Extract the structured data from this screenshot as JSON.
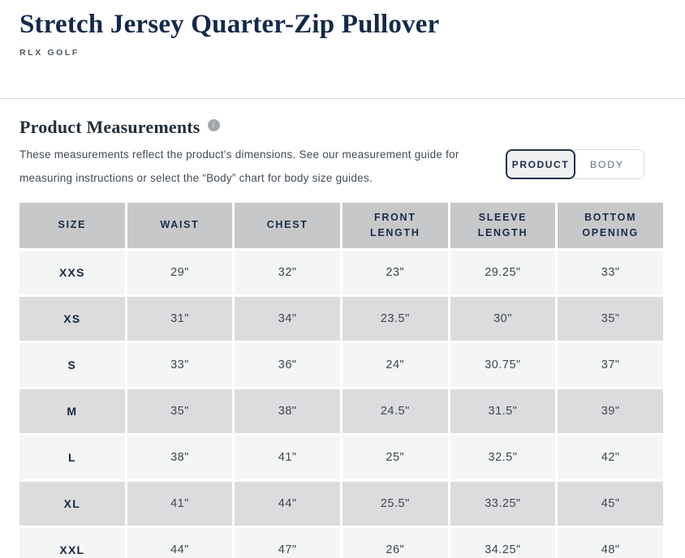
{
  "page": {
    "title": "Stretch Jersey Quarter-Zip Pullover",
    "brand": "RLX GOLF"
  },
  "measurements": {
    "heading": "Product Measurements",
    "info_icon": "i",
    "description": "These measurements reflect the product's dimensions. See our measurement guide for measuring instructions or select the “Body” chart for body size guides.",
    "toggle": {
      "product_label": "PRODUCT",
      "body_label": "BODY",
      "selected": "PRODUCT"
    }
  },
  "table": {
    "columns": [
      "SIZE",
      "WAIST",
      "CHEST",
      "FRONT LENGTH",
      "SLEEVE LENGTH",
      "BOTTOM OPENING"
    ],
    "rows": [
      {
        "size": "XXS",
        "values": [
          "29\"",
          "32\"",
          "23\"",
          "29.25\"",
          "33\""
        ]
      },
      {
        "size": "XS",
        "values": [
          "31\"",
          "34\"",
          "23.5\"",
          "30\"",
          "35\""
        ]
      },
      {
        "size": "S",
        "values": [
          "33\"",
          "36\"",
          "24\"",
          "30.75\"",
          "37\""
        ]
      },
      {
        "size": "M",
        "values": [
          "35\"",
          "38\"",
          "24.5\"",
          "31.5\"",
          "39\""
        ]
      },
      {
        "size": "L",
        "values": [
          "38\"",
          "41\"",
          "25\"",
          "32.5\"",
          "42\""
        ]
      },
      {
        "size": "XL",
        "values": [
          "41\"",
          "44\"",
          "25.5\"",
          "33.25\"",
          "45\""
        ]
      },
      {
        "size": "XXL",
        "values": [
          "44\"",
          "47\"",
          "26\"",
          "34.25\"",
          "48\""
        ]
      }
    ]
  },
  "colors": {
    "navy_text": "#14294a",
    "body_text": "#414a54",
    "header_cell_bg": "#c6c8ca",
    "row_light_bg": "#f4f5f5",
    "row_dark_bg": "#dcdcde",
    "active_button_border": "#24314e",
    "active_button_bg": "#eef0f1",
    "inactive_button_border": "#d8dadb",
    "divider": "#d9dbdd",
    "info_icon_bg": "#a2a6a9"
  }
}
